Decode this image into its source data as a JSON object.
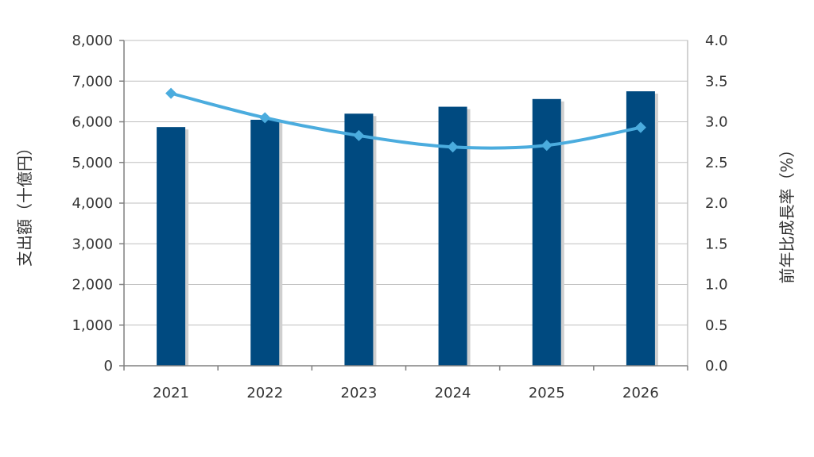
{
  "chart_data": {
    "type": "bar",
    "categories": [
      "2021",
      "2022",
      "2023",
      "2024",
      "2025",
      "2026"
    ],
    "series": [
      {
        "type": "bar",
        "axis": "left",
        "color": "#004a80",
        "values": [
          5870,
          6050,
          6200,
          6370,
          6560,
          6750
        ]
      },
      {
        "type": "line",
        "axis": "right",
        "color": "#4bacde",
        "values": [
          3.35,
          3.05,
          2.83,
          2.69,
          2.71,
          2.93
        ]
      }
    ],
    "left_axis": {
      "label": "支出額（十億円）",
      "ylim": [
        0,
        8000
      ],
      "ticks": [
        "0",
        "1,000",
        "2,000",
        "3,000",
        "4,000",
        "5,000",
        "6,000",
        "7,000",
        "8,000"
      ]
    },
    "right_axis": {
      "label": "前年比成長率（%）",
      "ylim": [
        0,
        4.0
      ],
      "ticks": [
        "0.0",
        "0.5",
        "1.0",
        "1.5",
        "2.0",
        "2.5",
        "3.0",
        "3.5",
        "4.0"
      ]
    },
    "grid": true,
    "legend": "none"
  }
}
